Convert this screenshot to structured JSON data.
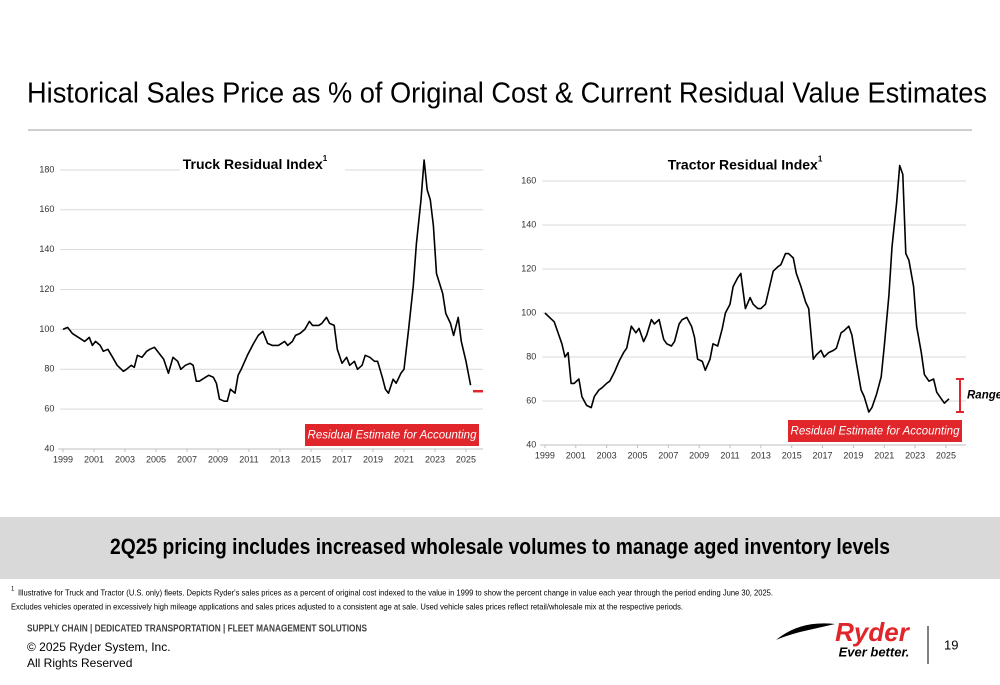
{
  "slide": {
    "title": "Historical Sales Price as % of Original Cost & Current Residual Value Estimates",
    "banner": "2Q25 pricing includes increased wholesale volumes to manage aged inventory levels",
    "footnote_mark": "1",
    "footnote": [
      "Illustrative for Truck and Tractor (U.S. only) fleets. Depicts Ryder's sales prices as a percent of original cost indexed to the value in 1999 to show the percent change in value each year through the period ending June 30, 2025.",
      "Excludes vehicles operated in excessively high mileage applications and sales prices adjusted to a consistent age at sale. Used vehicle sales prices reflect retail/wholesale mix at the respective periods."
    ],
    "footer_tagline": "SUPPLY CHAIN | DEDICATED TRANSPORTATION | FLEET MANAGEMENT SOLUTIONS",
    "copyright": "© 2025 Ryder System, Inc.",
    "rights": "All Rights Reserved",
    "logo_name": "Ryder",
    "logo_tagline": "Ever better.",
    "page_number": 19
  },
  "chart_data": [
    {
      "type": "line",
      "title": "Truck Residual Index",
      "title_note": "1",
      "x": [
        1999.0,
        1999.3,
        1999.6,
        2000.0,
        2000.4,
        2000.7,
        2000.9,
        2001.1,
        2001.4,
        2001.6,
        2001.9,
        2002.2,
        2002.5,
        2002.9,
        2003.1,
        2003.4,
        2003.6,
        2003.8,
        2004.1,
        2004.4,
        2004.6,
        2004.9,
        2005.1,
        2005.5,
        2005.8,
        2006.1,
        2006.4,
        2006.6,
        2006.9,
        2007.2,
        2007.4,
        2007.6,
        2007.8,
        2008.2,
        2008.4,
        2008.7,
        2008.9,
        2009.1,
        2009.4,
        2009.6,
        2009.8,
        2010.1,
        2010.3,
        2010.5,
        2010.9,
        2011.3,
        2011.6,
        2011.9,
        2012.2,
        2012.5,
        2012.9,
        2013.3,
        2013.5,
        2013.8,
        2014.0,
        2014.3,
        2014.6,
        2014.9,
        2015.1,
        2015.5,
        2015.7,
        2016.0,
        2016.2,
        2016.5,
        2016.7,
        2017.0,
        2017.3,
        2017.5,
        2017.8,
        2018.0,
        2018.3,
        2018.5,
        2018.8,
        2019.1,
        2019.3,
        2019.6,
        2019.8,
        2020.0,
        2020.3,
        2020.5,
        2020.8,
        2021.0,
        2021.3,
        2021.6,
        2021.8,
        2022.1,
        2022.3,
        2022.5,
        2022.7,
        2022.9,
        2023.1,
        2023.5,
        2023.7,
        2024.0,
        2024.2,
        2024.5,
        2024.7,
        2025.0,
        2025.3
      ],
      "series": [
        {
          "color": "#000000",
          "values": [
            100,
            101,
            98,
            96,
            94,
            96,
            92,
            94,
            92,
            89,
            90,
            86,
            82,
            79,
            80,
            82,
            81,
            87,
            86,
            89,
            90,
            91,
            89,
            85,
            78,
            86,
            84,
            80,
            82,
            83,
            82,
            74,
            74,
            76,
            77,
            76,
            73,
            65,
            64,
            64,
            70,
            68,
            77,
            80,
            87,
            93,
            97,
            99,
            93,
            92,
            92,
            94,
            92,
            94,
            97,
            98,
            100,
            104,
            102,
            102,
            103,
            106,
            103,
            102,
            90,
            83,
            86,
            82,
            84,
            80,
            82,
            87,
            86,
            84,
            84,
            76,
            70,
            68,
            75,
            73,
            78,
            80,
            100,
            122,
            143,
            165,
            185,
            170,
            165,
            152,
            128,
            118,
            108,
            103,
            97,
            106,
            94,
            84,
            72
          ]
        }
      ],
      "xlim": [
        1998.7,
        2026.1
      ],
      "ylim": [
        40,
        188
      ],
      "xticks": [
        1999,
        2001,
        2003,
        2005,
        2007,
        2009,
        2011,
        2013,
        2015,
        2017,
        2019,
        2021,
        2023,
        2025
      ],
      "yticks": [
        40,
        60,
        80,
        100,
        120,
        140,
        160,
        180
      ],
      "grid": true,
      "annotation": "Residual Estimate for Accounting",
      "annotation_color": "#e0262b",
      "residual_estimate": 69
    },
    {
      "type": "line",
      "title": "Tractor Residual Index",
      "title_note": "1",
      "x": [
        1999.0,
        1999.3,
        1999.6,
        1999.8,
        2000.1,
        2000.3,
        2000.5,
        2000.7,
        2000.9,
        2001.2,
        2001.4,
        2001.7,
        2002.0,
        2002.2,
        2002.5,
        2002.7,
        2003.0,
        2003.2,
        2003.5,
        2003.8,
        2004.1,
        2004.3,
        2004.6,
        2004.9,
        2005.1,
        2005.4,
        2005.6,
        2005.9,
        2006.1,
        2006.4,
        2006.7,
        2006.9,
        2007.2,
        2007.4,
        2007.7,
        2007.9,
        2008.2,
        2008.5,
        2008.7,
        2008.9,
        2009.2,
        2009.4,
        2009.7,
        2009.9,
        2010.2,
        2010.5,
        2010.7,
        2011.0,
        2011.2,
        2011.5,
        2011.7,
        2012.0,
        2012.3,
        2012.5,
        2012.8,
        2013.0,
        2013.3,
        2013.5,
        2013.8,
        2014.1,
        2014.3,
        2014.6,
        2014.8,
        2015.1,
        2015.3,
        2015.6,
        2015.9,
        2016.1,
        2016.4,
        2016.6,
        2016.9,
        2017.1,
        2017.4,
        2017.7,
        2017.9,
        2018.2,
        2018.4,
        2018.7,
        2018.9,
        2019.2,
        2019.5,
        2019.7,
        2020.0,
        2020.2,
        2020.5,
        2020.8,
        2021.0,
        2021.3,
        2021.5,
        2021.8,
        2022.0,
        2022.2,
        2022.4,
        2022.6,
        2022.9,
        2023.1,
        2023.4,
        2023.6,
        2023.9,
        2024.2,
        2024.4,
        2024.7,
        2024.9,
        2025.2
      ],
      "series": [
        {
          "color": "#000000",
          "values": [
            100,
            98,
            96,
            92,
            86,
            80,
            82,
            68,
            68,
            70,
            62,
            58,
            57,
            62,
            65,
            66,
            68,
            69,
            73,
            78,
            82,
            84,
            94,
            91,
            93,
            87,
            90,
            97,
            95,
            97,
            88,
            86,
            85,
            87,
            95,
            97,
            98,
            94,
            89,
            79,
            78,
            74,
            79,
            86,
            85,
            93,
            100,
            104,
            112,
            116,
            118,
            102,
            107,
            104,
            102,
            102,
            104,
            110,
            119,
            121,
            122,
            127,
            127,
            125,
            118,
            112,
            105,
            102,
            79,
            81,
            83,
            80,
            82,
            83,
            84,
            91,
            92,
            94,
            90,
            77,
            65,
            62,
            55,
            57,
            63,
            71,
            85,
            108,
            130,
            150,
            167,
            163,
            127,
            124,
            112,
            94,
            82,
            72,
            69,
            70,
            64,
            61,
            59,
            61
          ]
        }
      ],
      "xlim": [
        1998.7,
        2026.3
      ],
      "ylim": [
        40,
        172
      ],
      "xticks": [
        1999,
        2001,
        2003,
        2005,
        2007,
        2009,
        2011,
        2013,
        2015,
        2017,
        2019,
        2021,
        2023,
        2025
      ],
      "yticks": [
        40,
        60,
        80,
        100,
        120,
        140,
        160
      ],
      "grid": true,
      "annotation": "Residual Estimate for Accounting",
      "annotation_color": "#e0262b",
      "range": [
        55,
        70
      ],
      "range_label": "Range"
    }
  ]
}
